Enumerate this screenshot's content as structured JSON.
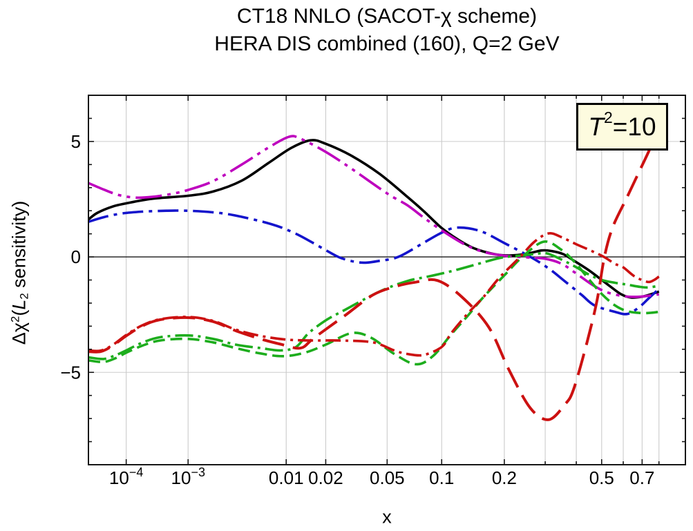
{
  "title": {
    "line1": "CT18 NNLO (SACOT-χ scheme)",
    "line2": "HERA DIS combined (160), Q=2 GeV"
  },
  "annotation": {
    "parts": [
      {
        "t": "T",
        "it": true
      },
      {
        "t": "2",
        "sup": true
      },
      {
        "t": "=10"
      }
    ],
    "fill": "#FDFBDF",
    "border": "#000000"
  },
  "axes": {
    "x": {
      "label": "x",
      "scale": "power(0.2)",
      "range": [
        1.1e-05,
        0.98
      ],
      "ticks": [
        {
          "v": 0.0001,
          "label": "10^−4"
        },
        {
          "v": 0.001,
          "label": "10^−3"
        },
        {
          "v": 0.01,
          "label": "0.01"
        },
        {
          "v": 0.02,
          "label": "0.02"
        },
        {
          "v": 0.05,
          "label": "0.05"
        },
        {
          "v": 0.1,
          "label": "0.1"
        },
        {
          "v": 0.2,
          "label": "0.2"
        },
        {
          "v": 0.3
        },
        {
          "v": 0.4
        },
        {
          "v": 0.5,
          "label": "0.5"
        },
        {
          "v": 0.6
        },
        {
          "v": 0.7,
          "label": "0.7"
        },
        {
          "v": 0.8
        }
      ]
    },
    "y": {
      "label_parts": [
        {
          "t": "Δχ"
        },
        {
          "t": "2",
          "sup": true
        },
        {
          "t": "("
        },
        {
          "t": "L",
          "it": true
        },
        {
          "t": "2",
          "sub": true
        },
        {
          "t": " sensitivity)"
        }
      ],
      "range": [
        -9,
        7
      ],
      "major": [
        {
          "v": -5,
          "label": "−5"
        },
        {
          "v": 0,
          "label": "0"
        },
        {
          "v": 5,
          "label": "5"
        }
      ],
      "minor": [
        -8,
        -7,
        -6,
        -4,
        -3,
        -2,
        -1,
        1,
        2,
        3,
        4,
        6
      ]
    }
  },
  "style": {
    "grid_color": "#CBCBCB",
    "frame_color": "#161616",
    "zero_line_color": "#1A1A1A"
  },
  "chart_data": {
    "type": "line",
    "title": "CT18 NNLO (SACOT-χ scheme) — HERA DIS combined (160), Q=2 GeV",
    "xlabel": "x",
    "ylabel": "Δχ²(L₂ sensitivity)",
    "xlim": [
      1.1e-05,
      0.98
    ],
    "ylim": [
      -9,
      7
    ],
    "grid": true,
    "legend": "none",
    "series": [
      {
        "name": "black-solid",
        "color": "#000000",
        "dash": [],
        "width": 3.6,
        "points": [
          [
            1.1e-05,
            1.62
          ],
          [
            2e-05,
            1.9
          ],
          [
            5e-05,
            2.18
          ],
          [
            0.0001,
            2.32
          ],
          [
            0.0003,
            2.52
          ],
          [
            0.001,
            2.65
          ],
          [
            0.002,
            2.83
          ],
          [
            0.004,
            3.3
          ],
          [
            0.007,
            4.05
          ],
          [
            0.011,
            4.72
          ],
          [
            0.0155,
            5.05
          ],
          [
            0.02,
            4.9
          ],
          [
            0.03,
            4.38
          ],
          [
            0.045,
            3.6
          ],
          [
            0.065,
            2.62
          ],
          [
            0.08,
            2.0
          ],
          [
            0.1,
            1.25
          ],
          [
            0.12,
            0.77
          ],
          [
            0.145,
            0.37
          ],
          [
            0.18,
            0.12
          ],
          [
            0.21,
            0.06
          ],
          [
            0.25,
            0.13
          ],
          [
            0.29,
            0.28
          ],
          [
            0.32,
            0.25
          ],
          [
            0.355,
            0.12
          ],
          [
            0.39,
            -0.15
          ],
          [
            0.45,
            -0.6
          ],
          [
            0.53,
            -1.22
          ],
          [
            0.59,
            -1.62
          ],
          [
            0.64,
            -1.76
          ],
          [
            0.7,
            -1.72
          ],
          [
            0.75,
            -1.62
          ],
          [
            0.8,
            -1.5
          ]
        ]
      },
      {
        "name": "blue-dash-dot",
        "color": "#1414CC",
        "dash": [
          30,
          8,
          5,
          8
        ],
        "width": 3.6,
        "points": [
          [
            1.1e-05,
            1.52
          ],
          [
            3e-05,
            1.72
          ],
          [
            8e-05,
            1.88
          ],
          [
            0.0002,
            1.96
          ],
          [
            0.0005,
            2.0
          ],
          [
            0.001,
            2.0
          ],
          [
            0.002,
            1.93
          ],
          [
            0.0034,
            1.8
          ],
          [
            0.0075,
            1.42
          ],
          [
            0.012,
            1.0
          ],
          [
            0.018,
            0.45
          ],
          [
            0.0245,
            0.0
          ],
          [
            0.031,
            -0.2
          ],
          [
            0.037,
            -0.25
          ],
          [
            0.045,
            -0.17
          ],
          [
            0.058,
            0.0
          ],
          [
            0.078,
            0.55
          ],
          [
            0.1,
            1.05
          ],
          [
            0.12,
            1.27
          ],
          [
            0.155,
            1.12
          ],
          [
            0.2,
            0.6
          ],
          [
            0.26,
            0.0
          ],
          [
            0.31,
            -0.5
          ],
          [
            0.36,
            -1.05
          ],
          [
            0.42,
            -1.65
          ],
          [
            0.47,
            -2.1
          ],
          [
            0.56,
            -2.38
          ],
          [
            0.62,
            -2.47
          ],
          [
            0.68,
            -2.2
          ],
          [
            0.74,
            -1.78
          ],
          [
            0.8,
            -1.38
          ]
        ]
      },
      {
        "name": "magenta-dash-dot-dot",
        "color": "#BE00BE",
        "dash": [
          38,
          8,
          5,
          8,
          5,
          8
        ],
        "width": 3.6,
        "points": [
          [
            1.1e-05,
            3.2
          ],
          [
            3e-05,
            2.92
          ],
          [
            7e-05,
            2.68
          ],
          [
            0.00015,
            2.57
          ],
          [
            0.0003,
            2.6
          ],
          [
            0.0006,
            2.73
          ],
          [
            0.001,
            2.9
          ],
          [
            0.002,
            3.28
          ],
          [
            0.004,
            4.0
          ],
          [
            0.007,
            4.72
          ],
          [
            0.0105,
            5.2
          ],
          [
            0.013,
            5.12
          ],
          [
            0.02,
            4.55
          ],
          [
            0.03,
            3.82
          ],
          [
            0.05,
            2.75
          ],
          [
            0.065,
            2.25
          ],
          [
            0.08,
            1.72
          ],
          [
            0.1,
            1.15
          ],
          [
            0.13,
            0.55
          ],
          [
            0.16,
            0.22
          ],
          [
            0.2,
            0.05
          ],
          [
            0.25,
            -0.02
          ],
          [
            0.3,
            -0.08
          ],
          [
            0.35,
            -0.3
          ],
          [
            0.4,
            -0.72
          ],
          [
            0.46,
            -1.2
          ],
          [
            0.52,
            -1.52
          ],
          [
            0.6,
            -1.7
          ],
          [
            0.67,
            -1.73
          ],
          [
            0.74,
            -1.68
          ],
          [
            0.8,
            -1.62
          ]
        ]
      },
      {
        "name": "green-dashed",
        "color": "#1DAD1D",
        "dash": [
          17,
          8
        ],
        "width": 3.6,
        "points": [
          [
            1.1e-05,
            -4.48
          ],
          [
            3e-05,
            -4.55
          ],
          [
            6e-05,
            -4.38
          ],
          [
            0.0001,
            -4.15
          ],
          [
            0.0002,
            -3.85
          ],
          [
            0.0004,
            -3.62
          ],
          [
            0.001,
            -3.55
          ],
          [
            0.002,
            -3.7
          ],
          [
            0.0035,
            -3.95
          ],
          [
            0.006,
            -4.18
          ],
          [
            0.0094,
            -4.3
          ],
          [
            0.014,
            -4.15
          ],
          [
            0.02,
            -3.8
          ],
          [
            0.03,
            -3.3
          ],
          [
            0.04,
            -3.5
          ],
          [
            0.055,
            -4.2
          ],
          [
            0.073,
            -4.65
          ],
          [
            0.09,
            -4.3
          ],
          [
            0.112,
            -3.35
          ],
          [
            0.135,
            -2.55
          ],
          [
            0.16,
            -1.75
          ],
          [
            0.2,
            -0.8
          ],
          [
            0.24,
            0.0
          ],
          [
            0.296,
            0.66
          ],
          [
            0.35,
            0.3
          ],
          [
            0.396,
            -0.25
          ],
          [
            0.45,
            -1.0
          ],
          [
            0.5,
            -1.6
          ],
          [
            0.56,
            -2.1
          ],
          [
            0.62,
            -2.35
          ],
          [
            0.69,
            -2.43
          ],
          [
            0.75,
            -2.42
          ],
          [
            0.8,
            -2.38
          ]
        ]
      },
      {
        "name": "green-dash-dot",
        "color": "#1DAD1D",
        "dash": [
          26,
          7,
          4,
          7
        ],
        "width": 3.6,
        "points": [
          [
            1.1e-05,
            -4.35
          ],
          [
            3e-05,
            -4.42
          ],
          [
            6e-05,
            -4.25
          ],
          [
            0.0001,
            -4.05
          ],
          [
            0.0002,
            -3.72
          ],
          [
            0.0004,
            -3.48
          ],
          [
            0.001,
            -3.4
          ],
          [
            0.002,
            -3.55
          ],
          [
            0.0035,
            -3.8
          ],
          [
            0.006,
            -3.95
          ],
          [
            0.009,
            -4.05
          ],
          [
            0.012,
            -3.9
          ],
          [
            0.015,
            -3.3
          ],
          [
            0.02,
            -2.75
          ],
          [
            0.027,
            -2.3
          ],
          [
            0.045,
            -1.5
          ],
          [
            0.065,
            -1.05
          ],
          [
            0.085,
            -0.85
          ],
          [
            0.112,
            -0.62
          ],
          [
            0.145,
            -0.35
          ],
          [
            0.19,
            -0.05
          ],
          [
            0.23,
            0.05
          ],
          [
            0.27,
            0.12
          ],
          [
            0.305,
            0.15
          ],
          [
            0.355,
            -0.15
          ],
          [
            0.4,
            -0.45
          ],
          [
            0.45,
            -0.78
          ],
          [
            0.5,
            -1.0
          ],
          [
            0.56,
            -1.12
          ],
          [
            0.62,
            -1.2
          ],
          [
            0.69,
            -1.3
          ],
          [
            0.74,
            -1.32
          ],
          [
            0.8,
            -1.25
          ]
        ]
      },
      {
        "name": "red-dash-dot",
        "color": "#CC1111",
        "dash": [
          22,
          7,
          4,
          7
        ],
        "width": 3.6,
        "points": [
          [
            1.1e-05,
            -4.05
          ],
          [
            2.5e-05,
            -4.06
          ],
          [
            5e-05,
            -3.82
          ],
          [
            0.0001,
            -3.38
          ],
          [
            0.0002,
            -2.97
          ],
          [
            0.0004,
            -2.7
          ],
          [
            0.001,
            -2.6
          ],
          [
            0.002,
            -2.77
          ],
          [
            0.0035,
            -3.15
          ],
          [
            0.006,
            -3.42
          ],
          [
            0.01,
            -3.58
          ],
          [
            0.016,
            -3.62
          ],
          [
            0.025,
            -3.62
          ],
          [
            0.041,
            -3.7
          ],
          [
            0.055,
            -4.05
          ],
          [
            0.065,
            -4.2
          ],
          [
            0.08,
            -4.25
          ],
          [
            0.1,
            -3.9
          ],
          [
            0.112,
            -3.3
          ],
          [
            0.135,
            -2.45
          ],
          [
            0.16,
            -1.75
          ],
          [
            0.19,
            -0.9
          ],
          [
            0.235,
            0.0
          ],
          [
            0.27,
            0.65
          ],
          [
            0.31,
            1.02
          ],
          [
            0.35,
            0.85
          ],
          [
            0.4,
            0.55
          ],
          [
            0.46,
            0.25
          ],
          [
            0.51,
            0.0
          ],
          [
            0.56,
            -0.3
          ],
          [
            0.6,
            -0.45
          ],
          [
            0.66,
            -0.85
          ],
          [
            0.73,
            -1.08
          ],
          [
            0.77,
            -1.0
          ],
          [
            0.8,
            -0.85
          ]
        ]
      },
      {
        "name": "red-long-dash",
        "color": "#CC1111",
        "dash": [
          32,
          13
        ],
        "width": 4,
        "points": [
          [
            1.1e-05,
            -4.1
          ],
          [
            2.5e-05,
            -4.1
          ],
          [
            5e-05,
            -3.85
          ],
          [
            0.0001,
            -3.42
          ],
          [
            0.0002,
            -3.0
          ],
          [
            0.0004,
            -2.72
          ],
          [
            0.001,
            -2.63
          ],
          [
            0.002,
            -2.8
          ],
          [
            0.0035,
            -3.2
          ],
          [
            0.006,
            -3.55
          ],
          [
            0.009,
            -3.78
          ],
          [
            0.013,
            -3.95
          ],
          [
            0.0165,
            -3.5
          ],
          [
            0.027,
            -2.55
          ],
          [
            0.041,
            -1.65
          ],
          [
            0.056,
            -1.28
          ],
          [
            0.072,
            -1.1
          ],
          [
            0.095,
            -1.02
          ],
          [
            0.127,
            -1.75
          ],
          [
            0.17,
            -3.05
          ],
          [
            0.21,
            -4.9
          ],
          [
            0.26,
            -6.55
          ],
          [
            0.31,
            -7.05
          ],
          [
            0.36,
            -6.4
          ],
          [
            0.39,
            -5.75
          ],
          [
            0.44,
            -3.7
          ],
          [
            0.48,
            -1.9
          ],
          [
            0.512,
            0.0
          ],
          [
            0.55,
            1.3
          ],
          [
            0.62,
            2.6
          ],
          [
            0.69,
            3.8
          ],
          [
            0.74,
            4.6
          ],
          [
            0.78,
            5.3
          ]
        ]
      }
    ]
  }
}
